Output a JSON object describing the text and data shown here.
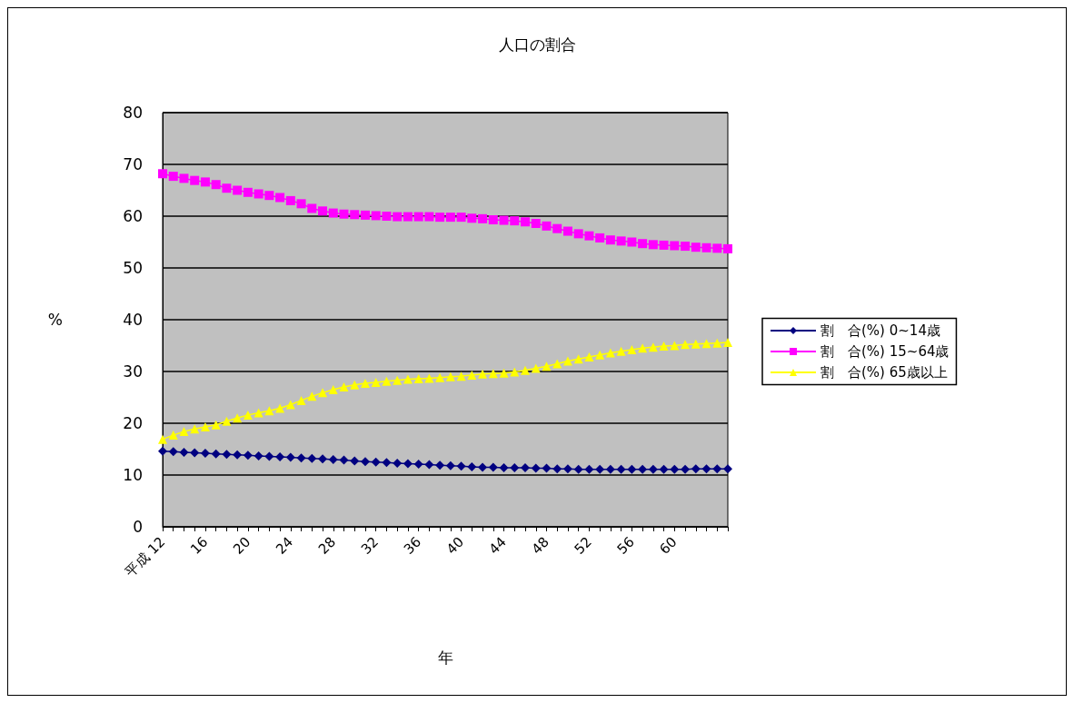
{
  "chart_data": {
    "type": "line",
    "title": "人口の割合",
    "xlabel": "年",
    "ylabel": "%",
    "categories": [
      "平成 12",
      null,
      null,
      null,
      "16",
      null,
      null,
      null,
      "20",
      null,
      null,
      null,
      "24",
      null,
      null,
      null,
      "28",
      null,
      null,
      null,
      "32",
      null,
      null,
      null,
      "36",
      null,
      null,
      null,
      "40",
      null,
      null,
      null,
      "44",
      null,
      null,
      null,
      "48",
      null,
      null,
      null,
      "52",
      null,
      null,
      null,
      "56",
      null,
      null,
      null,
      "60",
      null,
      null,
      null,
      null,
      null
    ],
    "series": [
      {
        "name": "割　合(%) 0~14歳",
        "color": "#000080",
        "marker": "diamond",
        "values": [
          14.6,
          14.5,
          14.4,
          14.3,
          14.2,
          14.1,
          14.0,
          13.9,
          13.8,
          13.7,
          13.6,
          13.5,
          13.4,
          13.3,
          13.2,
          13.1,
          13.0,
          12.9,
          12.7,
          12.6,
          12.5,
          12.4,
          12.3,
          12.2,
          12.1,
          12.0,
          11.9,
          11.8,
          11.7,
          11.6,
          11.5,
          11.5,
          11.4,
          11.4,
          11.4,
          11.3,
          11.3,
          11.2,
          11.2,
          11.1,
          11.1,
          11.1,
          11.1,
          11.1,
          11.1,
          11.1,
          11.1,
          11.1,
          11.1,
          11.1,
          11.2,
          11.2,
          11.2,
          11.2
        ]
      },
      {
        "name": "割　合(%) 15~64歳",
        "color": "#ff00ff",
        "marker": "square",
        "values": [
          68.2,
          67.7,
          67.3,
          66.9,
          66.6,
          66.1,
          65.4,
          65.0,
          64.6,
          64.3,
          64.0,
          63.6,
          63.0,
          62.4,
          61.5,
          61.0,
          60.6,
          60.4,
          60.3,
          60.2,
          60.1,
          60.0,
          59.9,
          59.9,
          59.9,
          59.9,
          59.8,
          59.8,
          59.8,
          59.6,
          59.5,
          59.3,
          59.2,
          59.1,
          58.9,
          58.6,
          58.1,
          57.6,
          57.1,
          56.6,
          56.2,
          55.8,
          55.4,
          55.2,
          55.0,
          54.7,
          54.5,
          54.4,
          54.3,
          54.2,
          54.0,
          53.9,
          53.8,
          53.7
        ]
      },
      {
        "name": "割　合(%) 65歳以上",
        "color": "#ffff00",
        "marker": "triangle",
        "values": [
          16.9,
          17.7,
          18.4,
          18.9,
          19.3,
          19.7,
          20.4,
          21.0,
          21.6,
          22.0,
          22.4,
          22.9,
          23.6,
          24.4,
          25.2,
          25.9,
          26.5,
          27.0,
          27.4,
          27.7,
          27.9,
          28.1,
          28.3,
          28.5,
          28.6,
          28.7,
          28.8,
          29.0,
          29.1,
          29.3,
          29.5,
          29.6,
          29.7,
          29.9,
          30.2,
          30.6,
          31.0,
          31.5,
          32.0,
          32.4,
          32.8,
          33.2,
          33.6,
          33.9,
          34.2,
          34.5,
          34.7,
          34.9,
          35.0,
          35.2,
          35.3,
          35.4,
          35.5,
          35.6
        ]
      }
    ],
    "ylim": [
      0,
      80
    ],
    "yticks": [
      0,
      10,
      20,
      30,
      40,
      50,
      60,
      70,
      80
    ],
    "grid": "y",
    "legend": "right",
    "line_style": "solid"
  }
}
